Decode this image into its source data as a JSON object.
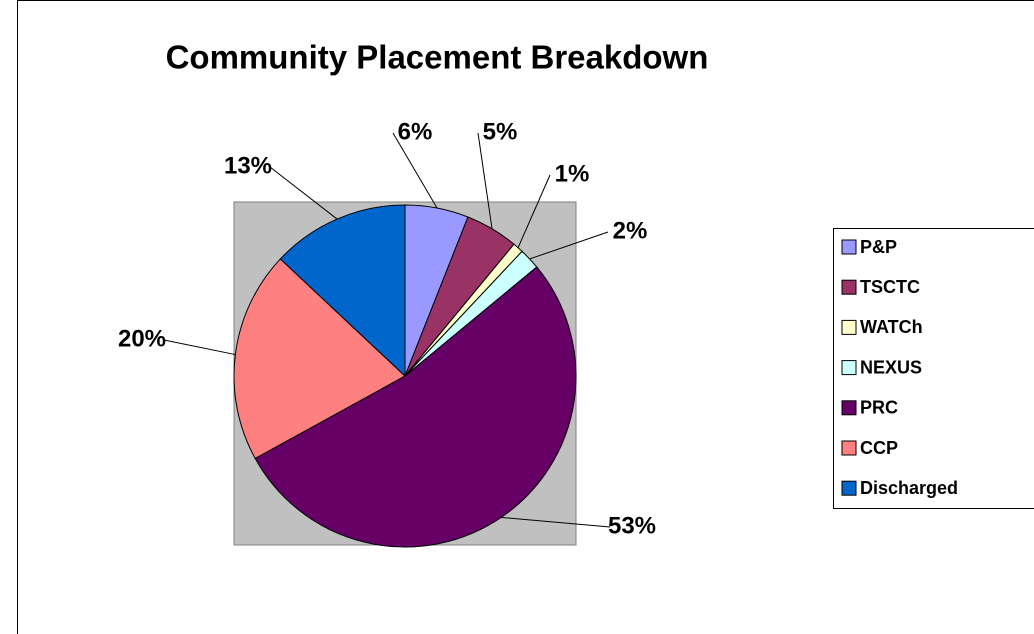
{
  "chart_data": {
    "type": "pie",
    "title": "Community Placement Breakdown",
    "categories": [
      "P&P",
      "TSCTC",
      "WATCh",
      "NEXUS",
      "PRC",
      "CCP",
      "Discharged"
    ],
    "values": [
      6,
      5,
      1,
      2,
      53,
      20,
      13
    ],
    "value_labels": [
      "6%",
      "5%",
      "1%",
      "2%",
      "53%",
      "20%",
      "13%"
    ],
    "colors": [
      "#9999ff",
      "#993366",
      "#ffffcc",
      "#ccffff",
      "#660066",
      "#ff8080",
      "#0066cc"
    ],
    "legend": "right"
  }
}
